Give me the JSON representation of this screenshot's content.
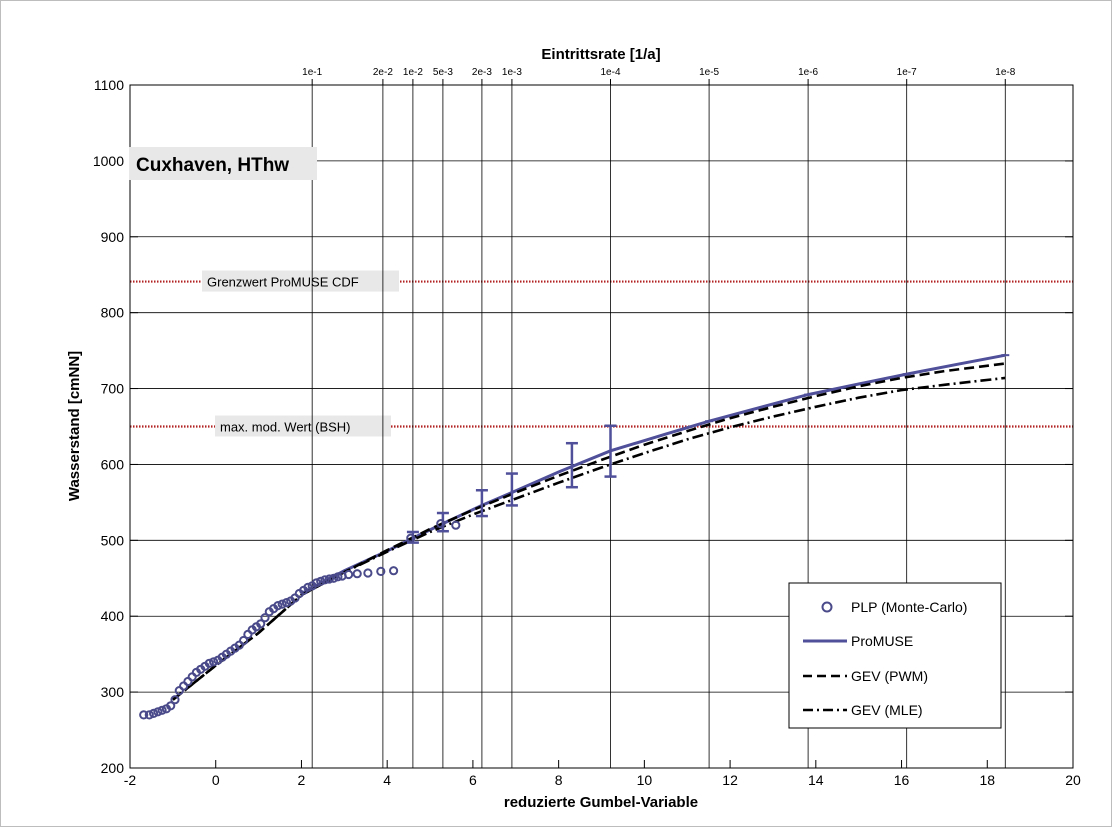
{
  "chart_data": {
    "type": "line",
    "ylabel": "Wasserstand [cmNN]",
    "xlabel": "reduzierte Gumbel-Variable",
    "top_axis_label": "Eintrittsrate [1/a]",
    "annotation": "Cuxhaven, HThw",
    "xlim": [
      -2,
      20
    ],
    "ylim": [
      200,
      1100
    ],
    "x_ticks": [
      -2,
      0,
      2,
      4,
      6,
      8,
      10,
      12,
      14,
      16,
      18,
      20
    ],
    "y_ticks": [
      200,
      300,
      400,
      500,
      600,
      700,
      800,
      900,
      1000,
      1100
    ],
    "grid": true,
    "top_ticks": [
      {
        "label": "1e-1",
        "x": 2.25
      },
      {
        "label": "2e-2",
        "x": 3.9
      },
      {
        "label": "1e-2",
        "x": 4.6
      },
      {
        "label": "5e-3",
        "x": 5.3
      },
      {
        "label": "2e-3",
        "x": 6.21
      },
      {
        "label": "1e-3",
        "x": 6.91
      },
      {
        "label": "1e-4",
        "x": 9.21
      },
      {
        "label": "1e-5",
        "x": 11.51
      },
      {
        "label": "1e-6",
        "x": 13.82
      },
      {
        "label": "1e-7",
        "x": 16.12
      },
      {
        "label": "1e-8",
        "x": 18.42
      }
    ],
    "reference_lines": [
      {
        "label": "Grenzwert ProMUSE CDF",
        "y": 841,
        "color": "#b22222"
      },
      {
        "label": "max. mod. Wert (BSH)",
        "y": 650,
        "color": "#b22222"
      }
    ],
    "legend_position": "bottom-right",
    "series": [
      {
        "name": "PLP (Monte-Carlo)",
        "style": "markers",
        "color": "#4a4a8a",
        "x": [
          -1.68,
          -1.55,
          -1.45,
          -1.35,
          -1.25,
          -1.15,
          -1.05,
          -0.95,
          -0.85,
          -0.75,
          -0.65,
          -0.55,
          -0.45,
          -0.35,
          -0.25,
          -0.15,
          -0.05,
          0.05,
          0.15,
          0.25,
          0.35,
          0.45,
          0.55,
          0.65,
          0.75,
          0.85,
          0.95,
          1.05,
          1.15,
          1.25,
          1.35,
          1.45,
          1.55,
          1.65,
          1.75,
          1.85,
          1.95,
          2.05,
          2.15,
          2.25,
          2.35,
          2.45,
          2.55,
          2.65,
          2.75,
          2.85,
          2.95,
          3.1,
          3.3,
          3.55,
          3.85,
          4.15,
          4.55,
          5.25,
          5.6
        ],
        "y": [
          270,
          270,
          272,
          274,
          276,
          278,
          282,
          290,
          302,
          308,
          314,
          320,
          326,
          330,
          334,
          338,
          340,
          342,
          346,
          350,
          354,
          358,
          362,
          368,
          376,
          382,
          386,
          390,
          398,
          406,
          410,
          414,
          416,
          418,
          420,
          424,
          430,
          434,
          438,
          440,
          444,
          446,
          448,
          449,
          450,
          452,
          453,
          455,
          456,
          457,
          459,
          460,
          503,
          522,
          520
        ]
      },
      {
        "name": "ProMUSE",
        "style": "solid",
        "color": "#4f4f9a",
        "x": [
          2.0,
          3.0,
          4.0,
          4.6,
          5.3,
          6.21,
          6.91,
          8.0,
          9.21,
          10.5,
          11.51,
          12.7,
          13.82,
          15.0,
          16.12,
          17.3,
          18.42
        ],
        "y": [
          430,
          460,
          486,
          503,
          522,
          546,
          563,
          590,
          618,
          640,
          657,
          675,
          692,
          706,
          719,
          732,
          744
        ]
      },
      {
        "name": "GEV (PWM)",
        "style": "dashed",
        "color": "#000000",
        "x": [
          -1.0,
          0.0,
          1.0,
          2.0,
          3.0,
          4.0,
          5.0,
          6.0,
          7.0,
          8.0,
          9.0,
          10.0,
          11.0,
          12.0,
          13.0,
          14.0,
          15.0,
          16.0,
          17.0,
          18.42
        ],
        "y": [
          290,
          335,
          378,
          428,
          458,
          487,
          515,
          540,
          563,
          585,
          606,
          626,
          644,
          661,
          676,
          690,
          703,
          714,
          723,
          733
        ]
      },
      {
        "name": "GEV (MLE)",
        "style": "dashdot",
        "color": "#000000",
        "x": [
          -1.0,
          0.0,
          1.0,
          2.0,
          3.0,
          4.0,
          5.0,
          6.0,
          7.0,
          8.0,
          9.0,
          10.0,
          11.0,
          12.0,
          13.0,
          14.0,
          15.0,
          16.0,
          17.0,
          18.42
        ],
        "y": [
          290,
          335,
          378,
          428,
          458,
          485,
          511,
          534,
          555,
          576,
          596,
          615,
          633,
          649,
          663,
          676,
          688,
          698,
          705,
          714
        ]
      }
    ],
    "error_bars": {
      "color": "#4f4f9a",
      "x": [
        4.6,
        5.3,
        6.21,
        6.91,
        8.31,
        9.21
      ],
      "low": [
        497,
        512,
        532,
        546,
        570,
        584
      ],
      "high": [
        511,
        536,
        566,
        588,
        628,
        651
      ]
    }
  }
}
